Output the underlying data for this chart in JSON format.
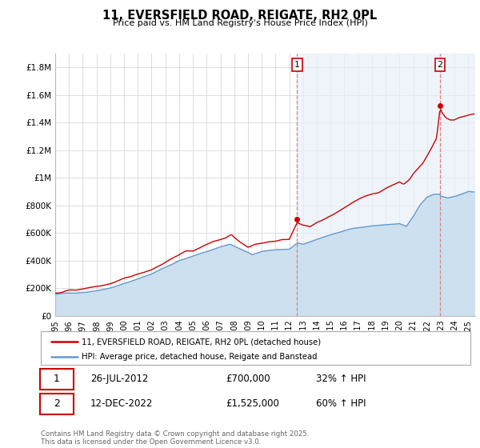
{
  "title": "11, EVERSFIELD ROAD, REIGATE, RH2 0PL",
  "subtitle": "Price paid vs. HM Land Registry's House Price Index (HPI)",
  "legend_label_red": "11, EVERSFIELD ROAD, REIGATE, RH2 0PL (detached house)",
  "legend_label_blue": "HPI: Average price, detached house, Reigate and Banstead",
  "annotation1_label": "1",
  "annotation1_date": "26-JUL-2012",
  "annotation1_price": "£700,000",
  "annotation1_hpi": "32% ↑ HPI",
  "annotation1_year": 2012.57,
  "annotation1_value": 700000,
  "annotation2_label": "2",
  "annotation2_date": "12-DEC-2022",
  "annotation2_price": "£1,525,000",
  "annotation2_hpi": "60% ↑ HPI",
  "annotation2_year": 2022.95,
  "annotation2_value": 1525000,
  "footer": "Contains HM Land Registry data © Crown copyright and database right 2025.\nThis data is licensed under the Open Government Licence v3.0.",
  "ylim": [
    0,
    1900000
  ],
  "xlim_start": 1995.0,
  "xlim_end": 2025.5,
  "color_red": "#cc0000",
  "color_blue_fill": "#cce0f0",
  "color_blue_line": "#6699cc",
  "color_highlight": "#e8f0f8",
  "vline_color": "#e08080",
  "background_color": "#ffffff",
  "grid_color": "#d8d8d8",
  "yticks": [
    0,
    200000,
    400000,
    600000,
    800000,
    1000000,
    1200000,
    1400000,
    1600000,
    1800000
  ],
  "ytick_labels": [
    "£0",
    "£200K",
    "£400K",
    "£600K",
    "£800K",
    "£1M",
    "£1.2M",
    "£1.4M",
    "£1.6M",
    "£1.8M"
  ],
  "xticks": [
    1995,
    1996,
    1997,
    1998,
    1999,
    2000,
    2001,
    2002,
    2003,
    2004,
    2005,
    2006,
    2007,
    2008,
    2009,
    2010,
    2011,
    2012,
    2013,
    2014,
    2015,
    2016,
    2017,
    2018,
    2019,
    2020,
    2021,
    2022,
    2023,
    2024,
    2025
  ]
}
